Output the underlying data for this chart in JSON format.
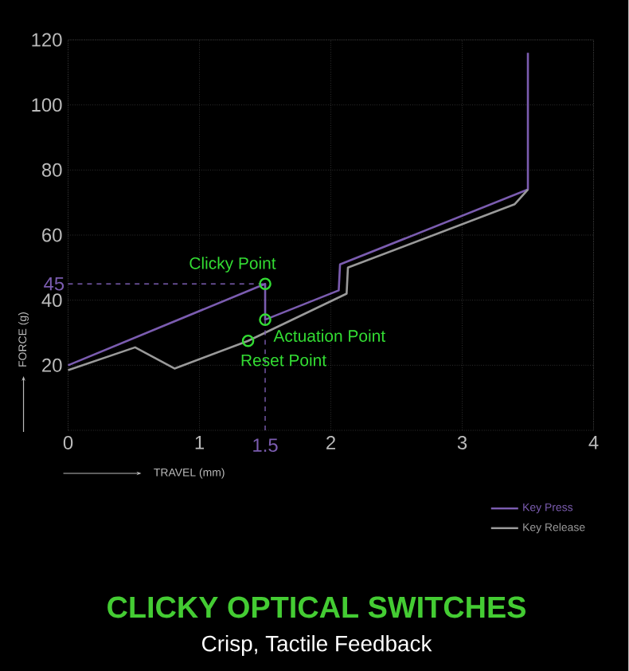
{
  "chart_data": {
    "type": "line",
    "title": "CLICKY OPTICAL SWITCHES",
    "subtitle": "Crisp, Tactile Feedback",
    "xlabel": "TRAVEL (mm)",
    "ylabel": "FORCE (g)",
    "xlim": [
      0,
      4
    ],
    "ylim": [
      0,
      120
    ],
    "xticks": [
      0,
      1,
      2,
      3,
      4
    ],
    "yticks": [
      20,
      40,
      60,
      80,
      100,
      120
    ],
    "grid": true,
    "legend": "bottom right",
    "series": [
      {
        "name": "Key Press",
        "color": "#7b5cb0",
        "x": [
          0,
          1.5,
          1.5,
          2.06,
          2.07,
          3.5,
          3.5
        ],
        "values": [
          20,
          45,
          34,
          43,
          51,
          74,
          116
        ]
      },
      {
        "name": "Key Release",
        "color": "#9a9a9a",
        "x": [
          0,
          0.51,
          0.81,
          1.37,
          1.5,
          2.12,
          2.13,
          3.4,
          3.5
        ],
        "values": [
          18.5,
          25.5,
          19,
          27.5,
          30,
          42,
          50,
          69.5,
          74
        ]
      },
      {
        "type": "scatter",
        "color": "#33dd33",
        "marker": "circle",
        "x": [
          1.5,
          1.5,
          1.37
        ],
        "values": [
          45,
          34,
          27.5
        ]
      }
    ],
    "ref_lines": [
      {
        "axis": "y",
        "value": 45,
        "label": "45",
        "color": "#7b5cb0",
        "line_style": "dashed"
      },
      {
        "axis": "x",
        "value": 1.5,
        "label": "1.5",
        "color": "#7b5cb0",
        "line_style": "dashed"
      }
    ],
    "annotations": [
      "Clicky Point",
      "Actuation Point",
      "Reset Point"
    ]
  }
}
